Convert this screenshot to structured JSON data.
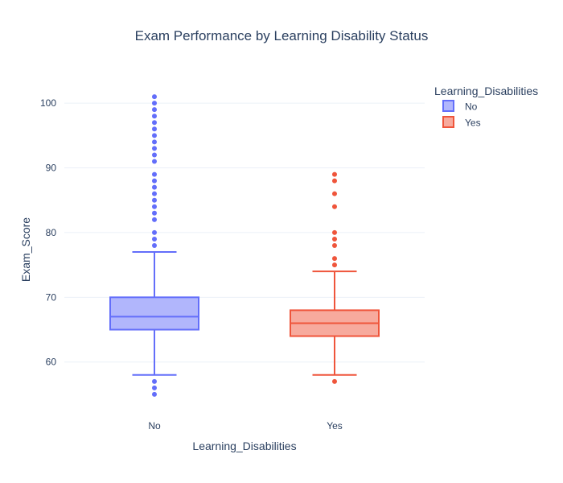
{
  "chart_data": {
    "type": "box",
    "title": "Exam Performance by Learning Disability Status",
    "xlabel": "Learning_Disabilities",
    "ylabel": "Exam_Score",
    "ylim": [
      52.5,
      103.5
    ],
    "yticks": [
      60,
      70,
      80,
      90,
      100
    ],
    "grid": true,
    "legend": {
      "title": "Learning_Disabilities",
      "position": "top-right"
    },
    "categories": [
      "No",
      "Yes"
    ],
    "series": [
      {
        "name": "No",
        "color": "#636efa",
        "fill": "rgba(99,110,250,0.5)",
        "lowerfence": 58,
        "q1": 65,
        "median": 67,
        "q3": 70,
        "upperfence": 77,
        "outliers": [
          55,
          56,
          57,
          78,
          79,
          80,
          82,
          83,
          84,
          85,
          86,
          87,
          88,
          89,
          91,
          92,
          93,
          94,
          95,
          96,
          97,
          98,
          99,
          100,
          101
        ]
      },
      {
        "name": "Yes",
        "color": "#ef553b",
        "fill": "rgba(239,85,59,0.5)",
        "lowerfence": 58,
        "q1": 64,
        "median": 66,
        "q3": 68,
        "upperfence": 74,
        "outliers": [
          57,
          75,
          76,
          78,
          79,
          80,
          84,
          86,
          88,
          89
        ]
      }
    ]
  }
}
